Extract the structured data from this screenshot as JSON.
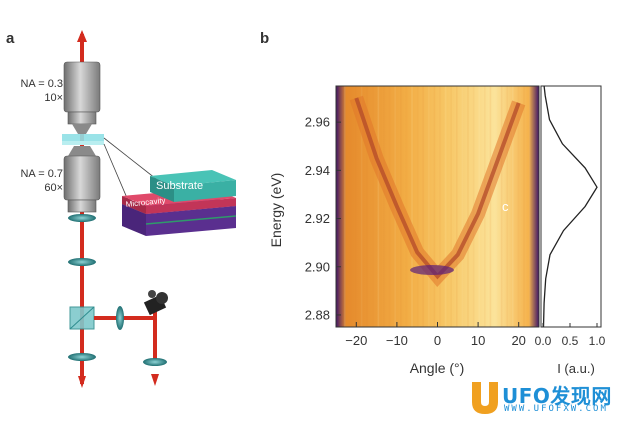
{
  "panel_a": {
    "panel_letter": "a",
    "objective_top_na": "NA = 0.3",
    "objective_top_mag": "10×",
    "objective_bottom_na": "NA = 0.7",
    "objective_bottom_mag": "60×",
    "sample_layer_top": "Substrate",
    "sample_layer_bottom": "Microcavity",
    "colors": {
      "beam": "#d32b1e",
      "objective": "#9a9a9a",
      "substrate": "#3ab0a4",
      "microcavity": "#d23a5a",
      "dbr": "#5a2f8f",
      "optic": "#2f8d8f"
    }
  },
  "panel_b": {
    "panel_letter": "b",
    "annotation": "c",
    "side_xlabel": "I (a.u.)",
    "side_ticks": [
      "0.0",
      "0.5",
      "1.0"
    ],
    "colors": {
      "heatmap_low": "#4b1a78",
      "heatmap_high": "#fff2b0",
      "heatmap_mid": "#f0a030"
    }
  },
  "chart_data": {
    "type": "heatmap",
    "xlabel": "Angle (°)",
    "ylabel": "Energy (eV)",
    "xlim": [
      -25,
      25
    ],
    "ylim": [
      2.875,
      2.975
    ],
    "xticks": [
      -20,
      -10,
      0,
      10,
      20
    ],
    "yticks": [
      2.88,
      2.9,
      2.92,
      2.94,
      2.96
    ],
    "xtick_labels": [
      "−20",
      "−10",
      "0",
      "10",
      "20"
    ],
    "ytick_labels": [
      "2.88",
      "2.90",
      "2.92",
      "2.94",
      "2.96"
    ],
    "dispersion": {
      "angles": [
        -20,
        -15,
        -10,
        -5,
        0,
        5,
        10,
        15,
        20
      ],
      "energies": [
        2.97,
        2.945,
        2.925,
        2.906,
        2.896,
        2.905,
        2.922,
        2.945,
        2.968
      ]
    },
    "side_profile": {
      "xlim": [
        0,
        1.0
      ],
      "energies": [
        2.875,
        2.885,
        2.895,
        2.905,
        2.915,
        2.925,
        2.933,
        2.941,
        2.951,
        2.961,
        2.971,
        2.975
      ],
      "intensity": [
        0.01,
        0.02,
        0.05,
        0.13,
        0.38,
        0.78,
        1.0,
        0.78,
        0.36,
        0.12,
        0.04,
        0.02
      ]
    }
  },
  "watermark": {
    "brand": "UFO发现网",
    "url": "WWW.UFOFXW.COM"
  }
}
